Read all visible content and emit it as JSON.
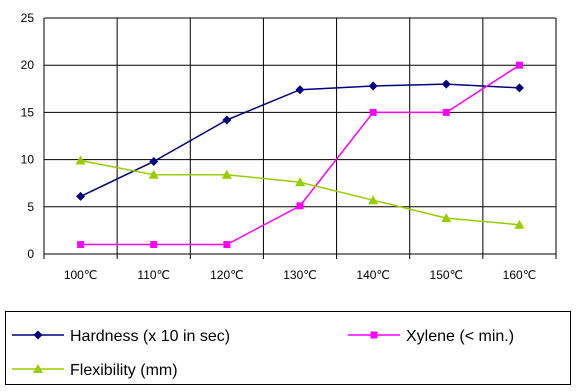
{
  "chart_data": {
    "type": "line",
    "categories": [
      "100℃",
      "110℃",
      "120℃",
      "130℃",
      "140℃",
      "150℃",
      "160℃"
    ],
    "series": [
      {
        "name": "Hardness (x 10 in sec)",
        "marker": "diamond",
        "color": "#000080",
        "values": [
          6.1,
          9.8,
          14.2,
          17.4,
          17.8,
          18.0,
          17.6
        ]
      },
      {
        "name": "Xylene (< min.)",
        "marker": "square",
        "color": "#ff00ff",
        "values": [
          1,
          1,
          1,
          5.1,
          15,
          15,
          20
        ]
      },
      {
        "name": "Flexibility  (mm)",
        "marker": "triangle",
        "color": "#99cc00",
        "values": [
          9.9,
          8.4,
          8.4,
          7.6,
          5.7,
          3.8,
          3.1
        ]
      }
    ],
    "ylim": [
      0,
      25
    ],
    "yticks": [
      0,
      5,
      10,
      15,
      20,
      25
    ],
    "grid": true,
    "legend_position": "bottom"
  }
}
